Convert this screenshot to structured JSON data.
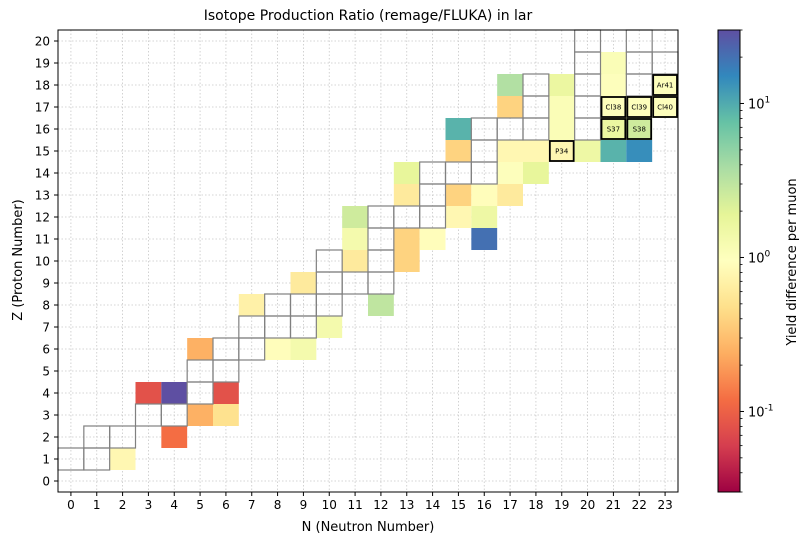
{
  "chart_data": {
    "type": "heatmap",
    "title": "Isotope Production Ratio (remage/FLUKA) in lar",
    "xlabel": "N (Neutron Number)",
    "ylabel": "Z (Proton Number)",
    "xlim": [
      -0.5,
      23.5
    ],
    "ylim": [
      -0.5,
      20.5
    ],
    "x_ticks": [
      "0",
      "1",
      "2",
      "3",
      "4",
      "5",
      "6",
      "7",
      "8",
      "9",
      "10",
      "11",
      "12",
      "13",
      "14",
      "15",
      "16",
      "17",
      "18",
      "19",
      "20",
      "21",
      "22",
      "23"
    ],
    "y_ticks": [
      "0",
      "1",
      "2",
      "3",
      "4",
      "5",
      "6",
      "7",
      "8",
      "9",
      "10",
      "11",
      "12",
      "13",
      "14",
      "15",
      "16",
      "17",
      "18",
      "19",
      "20"
    ],
    "grid": true,
    "colorbar": {
      "label": "Yield difference per muon",
      "scale": "log",
      "range": [
        0.03,
        30
      ],
      "tick_labels": [
        "10^-1",
        "10^0",
        "10^1"
      ],
      "tick_values": [
        0.1,
        1,
        10
      ],
      "colormap": "Spectral"
    },
    "cells": [
      {
        "n": 2,
        "z": 1,
        "value": 0.8
      },
      {
        "n": 3,
        "z": 4,
        "value": 0.08
      },
      {
        "n": 4,
        "z": 4,
        "value": 30
      },
      {
        "n": 4,
        "z": 2,
        "value": 0.12
      },
      {
        "n": 5,
        "z": 3,
        "value": 0.25
      },
      {
        "n": 6,
        "z": 3,
        "value": 0.5
      },
      {
        "n": 6,
        "z": 4,
        "value": 0.08
      },
      {
        "n": 5,
        "z": 6,
        "value": 0.25
      },
      {
        "n": 7,
        "z": 8,
        "value": 0.7
      },
      {
        "n": 8,
        "z": 6,
        "value": 0.9
      },
      {
        "n": 9,
        "z": 6,
        "value": 1.3
      },
      {
        "n": 9,
        "z": 9,
        "value": 0.6
      },
      {
        "n": 10,
        "z": 7,
        "value": 1.3
      },
      {
        "n": 11,
        "z": 11,
        "value": 1.3
      },
      {
        "n": 11,
        "z": 12,
        "value": 2.5
      },
      {
        "n": 11,
        "z": 10,
        "value": 0.6
      },
      {
        "n": 12,
        "z": 8,
        "value": 3.0
      },
      {
        "n": 13,
        "z": 10,
        "value": 0.4
      },
      {
        "n": 13,
        "z": 11,
        "value": 0.4
      },
      {
        "n": 13,
        "z": 13,
        "value": 0.6
      },
      {
        "n": 13,
        "z": 14,
        "value": 1.8
      },
      {
        "n": 14,
        "z": 11,
        "value": 0.9
      },
      {
        "n": 15,
        "z": 12,
        "value": 0.8
      },
      {
        "n": 15,
        "z": 13,
        "value": 0.4
      },
      {
        "n": 15,
        "z": 15,
        "value": 0.4
      },
      {
        "n": 15,
        "z": 16,
        "value": 9
      },
      {
        "n": 16,
        "z": 11,
        "value": 20
      },
      {
        "n": 16,
        "z": 12,
        "value": 1.5
      },
      {
        "n": 16,
        "z": 13,
        "value": 0.9
      },
      {
        "n": 17,
        "z": 13,
        "value": 0.6
      },
      {
        "n": 17,
        "z": 14,
        "value": 1.0
      },
      {
        "n": 17,
        "z": 15,
        "value": 0.8
      },
      {
        "n": 17,
        "z": 17,
        "value": 0.4
      },
      {
        "n": 17,
        "z": 18,
        "value": 3.5
      },
      {
        "n": 18,
        "z": 14,
        "value": 1.8
      },
      {
        "n": 18,
        "z": 15,
        "value": 0.8
      },
      {
        "n": 19,
        "z": 15,
        "value": 0.8,
        "label": "P34",
        "boxed": true
      },
      {
        "n": 19,
        "z": 16,
        "value": 1.1
      },
      {
        "n": 19,
        "z": 17,
        "value": 1.1
      },
      {
        "n": 19,
        "z": 18,
        "value": 1.6
      },
      {
        "n": 20,
        "z": 15,
        "value": 1.5
      },
      {
        "n": 21,
        "z": 15,
        "value": 9
      },
      {
        "n": 21,
        "z": 16,
        "value": 1.6,
        "label": "S37",
        "boxed": true
      },
      {
        "n": 21,
        "z": 17,
        "value": 1.0,
        "label": "Cl38",
        "boxed": true
      },
      {
        "n": 21,
        "z": 18,
        "value": 1.0
      },
      {
        "n": 21,
        "z": 19,
        "value": 1.1
      },
      {
        "n": 22,
        "z": 15,
        "value": 14
      },
      {
        "n": 22,
        "z": 16,
        "value": 2.5,
        "label": "S38",
        "boxed": true
      },
      {
        "n": 22,
        "z": 17,
        "value": 1.0,
        "label": "Cl39",
        "boxed": true
      },
      {
        "n": 23,
        "z": 17,
        "value": 1.0,
        "label": "Cl40",
        "boxed": true
      },
      {
        "n": 23,
        "z": 18,
        "value": 1.0,
        "label": "Ar41",
        "boxed": true
      }
    ],
    "empty_cells": [
      {
        "n": 0,
        "z": 1
      },
      {
        "n": 1,
        "z": 1
      },
      {
        "n": 1,
        "z": 2
      },
      {
        "n": 2,
        "z": 2
      },
      {
        "n": 3,
        "z": 3
      },
      {
        "n": 4,
        "z": 3
      },
      {
        "n": 5,
        "z": 4
      },
      {
        "n": 5,
        "z": 5
      },
      {
        "n": 6,
        "z": 5
      },
      {
        "n": 6,
        "z": 6
      },
      {
        "n": 7,
        "z": 6
      },
      {
        "n": 7,
        "z": 7
      },
      {
        "n": 8,
        "z": 7
      },
      {
        "n": 8,
        "z": 8
      },
      {
        "n": 9,
        "z": 7
      },
      {
        "n": 9,
        "z": 8
      },
      {
        "n": 10,
        "z": 8
      },
      {
        "n": 10,
        "z": 9
      },
      {
        "n": 10,
        "z": 10
      },
      {
        "n": 11,
        "z": 9
      },
      {
        "n": 12,
        "z": 9
      },
      {
        "n": 12,
        "z": 10
      },
      {
        "n": 12,
        "z": 11
      },
      {
        "n": 12,
        "z": 12
      },
      {
        "n": 13,
        "z": 12
      },
      {
        "n": 14,
        "z": 12
      },
      {
        "n": 14,
        "z": 13
      },
      {
        "n": 14,
        "z": 14
      },
      {
        "n": 15,
        "z": 14
      },
      {
        "n": 16,
        "z": 14
      },
      {
        "n": 16,
        "z": 15
      },
      {
        "n": 16,
        "z": 16
      },
      {
        "n": 17,
        "z": 16
      },
      {
        "n": 18,
        "z": 16
      },
      {
        "n": 18,
        "z": 17
      },
      {
        "n": 18,
        "z": 18
      },
      {
        "n": 20,
        "z": 16
      },
      {
        "n": 20,
        "z": 17
      },
      {
        "n": 20,
        "z": 18
      },
      {
        "n": 20,
        "z": 19
      },
      {
        "n": 20,
        "z": 20
      },
      {
        "n": 22,
        "z": 18
      },
      {
        "n": 22,
        "z": 19
      },
      {
        "n": 22,
        "z": 20
      },
      {
        "n": 23,
        "z": 19
      }
    ]
  }
}
